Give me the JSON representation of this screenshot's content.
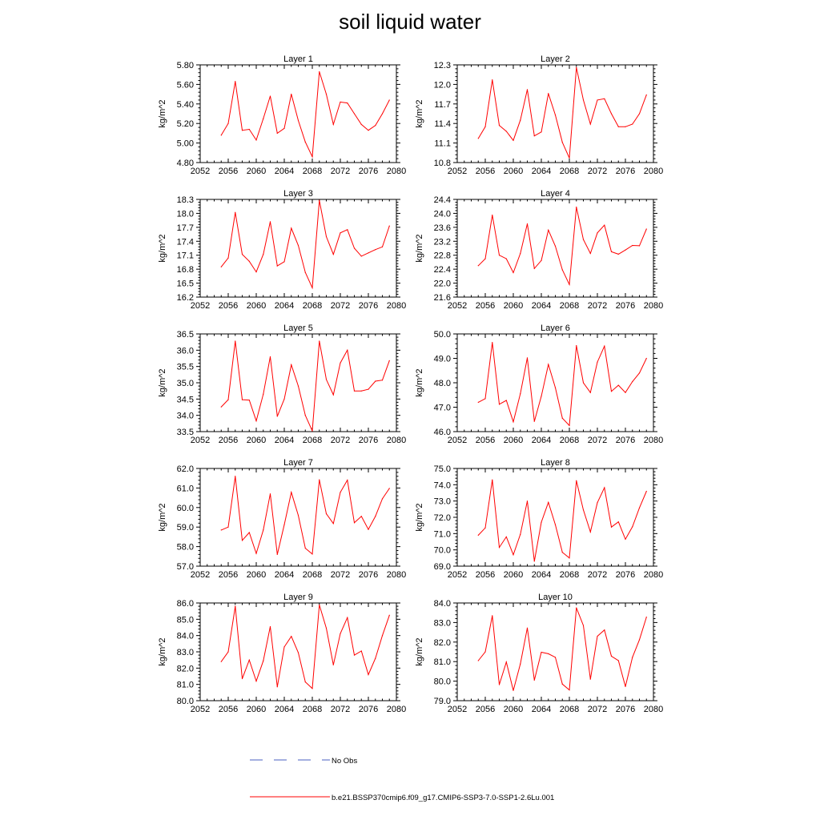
{
  "title": "soil liquid water",
  "colors": {
    "model": "#ff0000",
    "obs": "#4a5fc1",
    "axis": "#000000"
  },
  "legend": {
    "obs_label": "No Obs",
    "model_label": "b.e21.BSSP370cmip6.f09_g17.CMIP6-SSP3-7.0-SSP1-2.6Lu.001"
  },
  "chart_data": [
    {
      "type": "line",
      "title": "Layer 1",
      "ylabel": "kg/m^2",
      "xlim": [
        2052,
        2080
      ],
      "xticks": [
        "2052",
        "2056",
        "2060",
        "2064",
        "2068",
        "2072",
        "2076",
        "2080"
      ],
      "ylim": [
        4.8,
        5.8
      ],
      "yticks": [
        "4.80",
        "5.00",
        "5.20",
        "5.40",
        "5.60",
        "5.80"
      ],
      "series": [
        {
          "x": [
            2055,
            2056,
            2057,
            2058,
            2059,
            2060,
            2061,
            2062,
            2063,
            2064,
            2065,
            2066,
            2067,
            2068,
            2069,
            2070,
            2071,
            2072,
            2073,
            2074,
            2075,
            2076,
            2077,
            2078,
            2079
          ],
          "values": [
            5.08,
            5.2,
            5.63,
            5.13,
            5.14,
            5.03,
            5.25,
            5.48,
            5.1,
            5.15,
            5.5,
            5.23,
            5.01,
            4.86,
            5.73,
            5.5,
            5.19,
            5.42,
            5.41,
            5.3,
            5.19,
            5.13,
            5.18,
            5.3,
            5.44
          ]
        }
      ]
    },
    {
      "type": "line",
      "title": "Layer 2",
      "ylabel": "kg/m^2",
      "xlim": [
        2052,
        2080
      ],
      "xticks": [
        "2052",
        "2056",
        "2060",
        "2064",
        "2068",
        "2072",
        "2076",
        "2080"
      ],
      "ylim": [
        10.8,
        12.3
      ],
      "yticks": [
        "10.8",
        "11.1",
        "11.4",
        "11.7",
        "12.0",
        "12.3"
      ],
      "series": [
        {
          "x": [
            2055,
            2056,
            2057,
            2058,
            2059,
            2060,
            2061,
            2062,
            2063,
            2064,
            2065,
            2066,
            2067,
            2068,
            2069,
            2070,
            2071,
            2072,
            2073,
            2074,
            2075,
            2076,
            2077,
            2078,
            2079
          ],
          "values": [
            11.17,
            11.35,
            12.07,
            11.37,
            11.28,
            11.14,
            11.45,
            11.92,
            11.21,
            11.27,
            11.86,
            11.53,
            11.11,
            10.87,
            12.26,
            11.76,
            11.39,
            11.76,
            11.78,
            11.55,
            11.35,
            11.35,
            11.39,
            11.55,
            11.84
          ]
        }
      ]
    },
    {
      "type": "line",
      "title": "Layer 3",
      "ylabel": "kg/m^2",
      "xlim": [
        2052,
        2080
      ],
      "xticks": [
        "2052",
        "2056",
        "2060",
        "2064",
        "2068",
        "2072",
        "2076",
        "2080"
      ],
      "ylim": [
        16.2,
        18.3
      ],
      "yticks": [
        "16.2",
        "16.5",
        "16.8",
        "17.1",
        "17.4",
        "17.7",
        "18.0",
        "18.3"
      ],
      "series": [
        {
          "x": [
            2055,
            2056,
            2057,
            2058,
            2059,
            2060,
            2061,
            2062,
            2063,
            2064,
            2065,
            2066,
            2067,
            2068,
            2069,
            2070,
            2071,
            2072,
            2073,
            2074,
            2075,
            2076,
            2077,
            2078,
            2079
          ],
          "values": [
            16.85,
            17.04,
            18.02,
            17.12,
            16.97,
            16.74,
            17.12,
            17.82,
            16.87,
            16.96,
            17.68,
            17.31,
            16.73,
            16.4,
            18.28,
            17.5,
            17.12,
            17.58,
            17.65,
            17.25,
            17.08,
            17.15,
            17.22,
            17.28,
            17.73
          ]
        }
      ]
    },
    {
      "type": "line",
      "title": "Layer 4",
      "ylabel": "kg/m^2",
      "xlim": [
        2052,
        2080
      ],
      "xticks": [
        "2052",
        "2056",
        "2060",
        "2064",
        "2068",
        "2072",
        "2076",
        "2080"
      ],
      "ylim": [
        21.6,
        24.4
      ],
      "yticks": [
        "21.6",
        "22.0",
        "22.4",
        "22.8",
        "23.2",
        "23.6",
        "24.0",
        "24.4"
      ],
      "series": [
        {
          "x": [
            2055,
            2056,
            2057,
            2058,
            2059,
            2060,
            2061,
            2062,
            2063,
            2064,
            2065,
            2066,
            2067,
            2068,
            2069,
            2070,
            2071,
            2072,
            2073,
            2074,
            2075,
            2076,
            2077,
            2078,
            2079
          ],
          "values": [
            22.5,
            22.7,
            23.95,
            22.8,
            22.7,
            22.3,
            22.85,
            23.7,
            22.42,
            22.65,
            23.52,
            23.06,
            22.38,
            21.96,
            24.18,
            23.25,
            22.85,
            23.44,
            23.66,
            22.9,
            22.83,
            22.95,
            23.08,
            23.07,
            23.55
          ]
        }
      ]
    },
    {
      "type": "line",
      "title": "Layer 5",
      "ylabel": "kg/m^2",
      "xlim": [
        2052,
        2080
      ],
      "xticks": [
        "2052",
        "2056",
        "2060",
        "2064",
        "2068",
        "2072",
        "2076",
        "2080"
      ],
      "ylim": [
        33.5,
        36.5
      ],
      "yticks": [
        "33.5",
        "34.0",
        "34.5",
        "35.0",
        "35.5",
        "36.0",
        "36.5"
      ],
      "series": [
        {
          "x": [
            2055,
            2056,
            2057,
            2058,
            2059,
            2060,
            2061,
            2062,
            2063,
            2064,
            2065,
            2066,
            2067,
            2068,
            2069,
            2070,
            2071,
            2072,
            2073,
            2074,
            2075,
            2076,
            2077,
            2078,
            2079
          ],
          "values": [
            34.26,
            34.48,
            36.28,
            34.48,
            34.47,
            33.83,
            34.65,
            35.8,
            33.97,
            34.5,
            35.55,
            34.9,
            34.0,
            33.52,
            36.28,
            35.1,
            34.63,
            35.61,
            36.0,
            34.75,
            34.75,
            34.8,
            35.05,
            35.08,
            35.68
          ]
        }
      ]
    },
    {
      "type": "line",
      "title": "Layer 6",
      "ylabel": "kg/m^2",
      "xlim": [
        2052,
        2080
      ],
      "xticks": [
        "2052",
        "2056",
        "2060",
        "2064",
        "2068",
        "2072",
        "2076",
        "2080"
      ],
      "ylim": [
        46.0,
        50.0
      ],
      "yticks": [
        "46.0",
        "47.0",
        "48.0",
        "49.0",
        "50.0"
      ],
      "series": [
        {
          "x": [
            2055,
            2056,
            2057,
            2058,
            2059,
            2060,
            2061,
            2062,
            2063,
            2064,
            2065,
            2066,
            2067,
            2068,
            2069,
            2070,
            2071,
            2072,
            2073,
            2074,
            2075,
            2076,
            2077,
            2078,
            2079
          ],
          "values": [
            47.2,
            47.35,
            49.65,
            47.12,
            47.28,
            46.4,
            47.55,
            49.02,
            46.42,
            47.45,
            48.75,
            47.8,
            46.55,
            46.25,
            49.52,
            48.0,
            47.6,
            48.85,
            49.5,
            47.65,
            47.9,
            47.6,
            48.05,
            48.4,
            49.0
          ]
        }
      ]
    },
    {
      "type": "line",
      "title": "Layer 7",
      "ylabel": "kg/m^2",
      "xlim": [
        2052,
        2080
      ],
      "xticks": [
        "2052",
        "2056",
        "2060",
        "2064",
        "2068",
        "2072",
        "2076",
        "2080"
      ],
      "ylim": [
        57.0,
        62.0
      ],
      "yticks": [
        "57.0",
        "58.0",
        "59.0",
        "60.0",
        "61.0",
        "62.0"
      ],
      "series": [
        {
          "x": [
            2055,
            2056,
            2057,
            2058,
            2059,
            2060,
            2061,
            2062,
            2063,
            2064,
            2065,
            2066,
            2067,
            2068,
            2069,
            2070,
            2071,
            2072,
            2073,
            2074,
            2075,
            2076,
            2077,
            2078,
            2079
          ],
          "values": [
            58.85,
            59.0,
            61.6,
            58.32,
            58.72,
            57.65,
            58.85,
            60.7,
            57.6,
            59.12,
            60.78,
            59.6,
            57.92,
            57.62,
            61.42,
            59.68,
            59.18,
            60.78,
            61.4,
            59.22,
            59.55,
            58.88,
            59.55,
            60.45,
            60.98
          ]
        }
      ]
    },
    {
      "type": "line",
      "title": "Layer 8",
      "ylabel": "kg/m^2",
      "xlim": [
        2052,
        2080
      ],
      "xticks": [
        "2052",
        "2056",
        "2060",
        "2064",
        "2068",
        "2072",
        "2076",
        "2080"
      ],
      "ylim": [
        69.0,
        75.0
      ],
      "yticks": [
        "69.0",
        "70.0",
        "71.0",
        "72.0",
        "73.0",
        "74.0",
        "75.0"
      ],
      "series": [
        {
          "x": [
            2055,
            2056,
            2057,
            2058,
            2059,
            2060,
            2061,
            2062,
            2063,
            2064,
            2065,
            2066,
            2067,
            2068,
            2069,
            2070,
            2071,
            2072,
            2073,
            2074,
            2075,
            2076,
            2077,
            2078,
            2079
          ],
          "values": [
            70.9,
            71.35,
            74.3,
            70.15,
            70.8,
            69.7,
            70.95,
            73.0,
            69.3,
            71.7,
            72.92,
            71.55,
            69.85,
            69.5,
            74.25,
            72.45,
            71.1,
            72.9,
            73.82,
            71.4,
            71.72,
            70.65,
            71.42,
            72.58,
            73.6
          ]
        }
      ]
    },
    {
      "type": "line",
      "title": "Layer 9",
      "ylabel": "kg/m^2",
      "xlim": [
        2052,
        2080
      ],
      "xticks": [
        "2052",
        "2056",
        "2060",
        "2064",
        "2068",
        "2072",
        "2076",
        "2080"
      ],
      "ylim": [
        80.0,
        86.0
      ],
      "yticks": [
        "80.0",
        "81.0",
        "82.0",
        "83.0",
        "84.0",
        "85.0",
        "86.0"
      ],
      "series": [
        {
          "x": [
            2055,
            2056,
            2057,
            2058,
            2059,
            2060,
            2061,
            2062,
            2063,
            2064,
            2065,
            2066,
            2067,
            2068,
            2069,
            2070,
            2071,
            2072,
            2073,
            2074,
            2075,
            2076,
            2077,
            2078,
            2079
          ],
          "values": [
            82.4,
            83.0,
            85.8,
            81.35,
            82.5,
            81.2,
            82.45,
            84.55,
            80.85,
            83.3,
            83.95,
            82.95,
            81.15,
            80.75,
            85.88,
            84.45,
            82.2,
            84.12,
            85.1,
            82.8,
            83.05,
            81.6,
            82.6,
            84.0,
            85.25
          ]
        }
      ]
    },
    {
      "type": "line",
      "title": "Layer 10",
      "ylabel": "kg/m^2",
      "xlim": [
        2052,
        2080
      ],
      "xticks": [
        "2052",
        "2056",
        "2060",
        "2064",
        "2068",
        "2072",
        "2076",
        "2080"
      ],
      "ylim": [
        79.0,
        84.0
      ],
      "yticks": [
        "79.0",
        "80.0",
        "81.0",
        "82.0",
        "83.0",
        "84.0"
      ],
      "series": [
        {
          "x": [
            2055,
            2056,
            2057,
            2058,
            2059,
            2060,
            2061,
            2062,
            2063,
            2064,
            2065,
            2066,
            2067,
            2068,
            2069,
            2070,
            2071,
            2072,
            2073,
            2074,
            2075,
            2076,
            2077,
            2078,
            2079
          ],
          "values": [
            81.05,
            81.5,
            83.35,
            79.82,
            80.98,
            79.52,
            80.88,
            82.72,
            80.05,
            81.48,
            81.4,
            81.22,
            79.85,
            79.55,
            83.75,
            82.85,
            80.1,
            82.3,
            82.62,
            81.28,
            81.05,
            79.72,
            81.22,
            82.12,
            83.28
          ]
        }
      ]
    }
  ]
}
